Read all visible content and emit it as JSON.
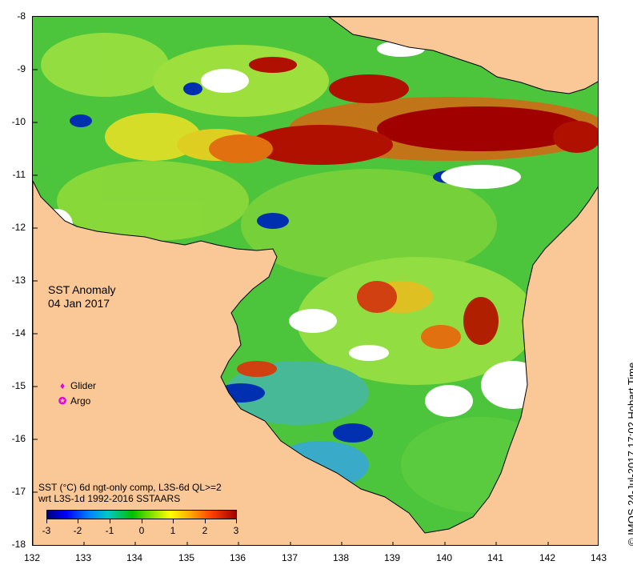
{
  "map": {
    "title_line1": "SST Anomaly",
    "title_line2": "04 Jan 2017",
    "x_ticks": [
      "132",
      "133",
      "134",
      "135",
      "136",
      "137",
      "138",
      "139",
      "140",
      "141",
      "142",
      "143"
    ],
    "y_ticks": [
      "-8",
      "-9",
      "-10",
      "-11",
      "-12",
      "-13",
      "-14",
      "-15",
      "-16",
      "-17",
      "-18"
    ],
    "lon_range": [
      132,
      143
    ],
    "lat_range": [
      -18,
      -8
    ],
    "land_color": "#fac896",
    "ocean_missing_color": "#ffffff"
  },
  "legend": {
    "glider_label": "Glider",
    "argo_label": "Argo",
    "glider_icon": "diamond-icon",
    "argo_icon": "circle-star-icon",
    "marker_color": "#e000e0"
  },
  "colorbar": {
    "caption_line1": "SST (°C) 6d ngt-only comp, L3S-6d QL>=2",
    "caption_line2": "wrt L3S-1d 1992-2016 SSTAARS",
    "ticks": [
      "-3",
      "-2",
      "-1",
      "0",
      "1",
      "2",
      "3"
    ],
    "range": [
      -3,
      3
    ]
  },
  "credit": "© IMOS 24-Jul-2017 17:02 Hobart Time"
}
